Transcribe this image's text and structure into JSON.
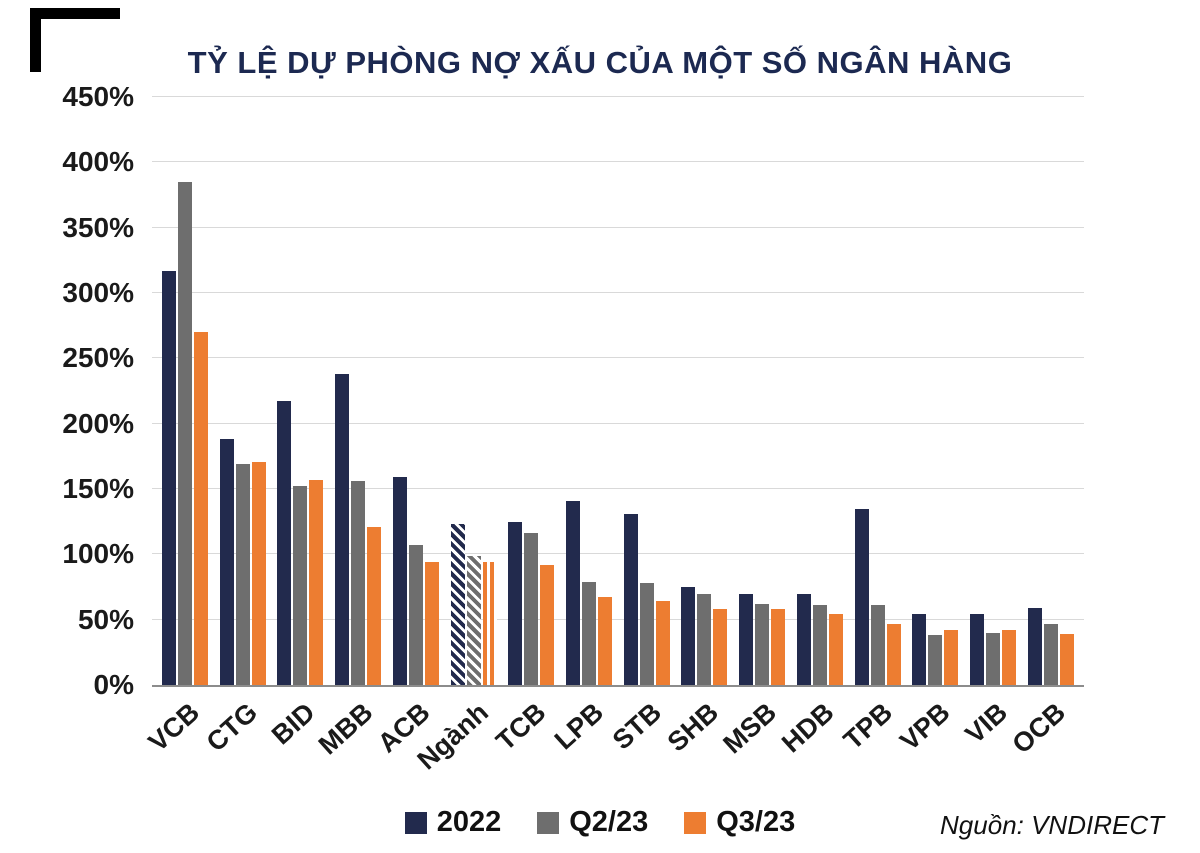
{
  "frame": {
    "source": "Nguồn: VNDIRECT"
  },
  "colors": {
    "navy": "#222A4D",
    "gray": "#6E6E6E",
    "orange": "#ED7D31",
    "title": "#1C2951",
    "grid": "#D9D9D9",
    "axis": "#8C8C8C"
  },
  "chart_data": {
    "type": "bar",
    "title": "TỶ LỆ DỰ PHÒNG NỢ XẤU CỦA MỘT SỐ NGÂN HÀNG",
    "xlabel": "",
    "ylabel": "",
    "ylim": [
      0,
      450
    ],
    "ytick_step": 50,
    "ytick_suffix": "%",
    "grid": "horizontal",
    "legend_position": "bottom",
    "categories": [
      "VCB",
      "CTG",
      "BID",
      "MBB",
      "ACB",
      "Ngành",
      "TCB",
      "LPB",
      "STB",
      "SHB",
      "MSB",
      "HDB",
      "TPB",
      "VPB",
      "VIB",
      "OCB"
    ],
    "hatched_categories": [
      "Ngành"
    ],
    "series": [
      {
        "name": "2022",
        "color": "#222A4D",
        "values": [
          317,
          188,
          217,
          238,
          159,
          123,
          125,
          141,
          131,
          75,
          70,
          70,
          135,
          54,
          54,
          59
        ]
      },
      {
        "name": "Q2/23",
        "color": "#6E6E6E",
        "values": [
          385,
          169,
          152,
          156,
          107,
          99,
          116,
          79,
          78,
          70,
          62,
          61,
          61,
          38,
          40,
          47
        ]
      },
      {
        "name": "Q3/23",
        "color": "#ED7D31",
        "values": [
          270,
          171,
          157,
          121,
          94,
          94,
          92,
          67,
          64,
          58,
          58,
          54,
          47,
          42,
          42,
          39
        ]
      }
    ]
  }
}
